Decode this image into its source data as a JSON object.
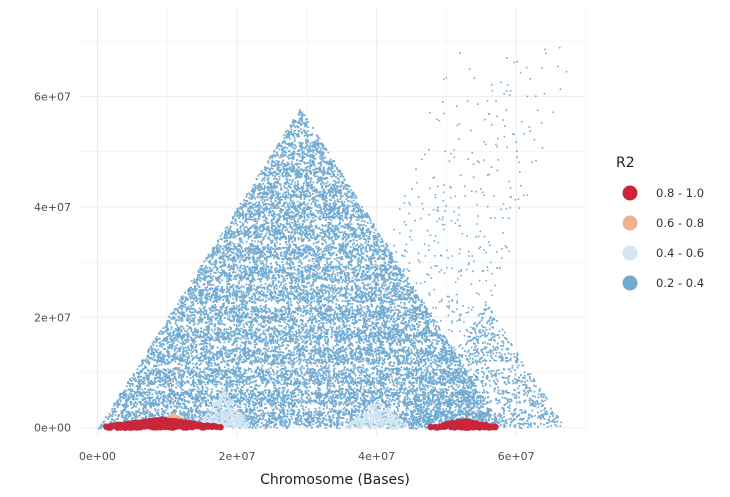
{
  "chart_data": {
    "type": "scatter",
    "title": "",
    "xlabel": "Chromosome (Bases)",
    "ylabel": "",
    "xlim": [
      -2500000,
      70000000
    ],
    "ylim": [
      -1500000,
      76000000
    ],
    "x_ticks": [
      0,
      20000000,
      40000000,
      60000000
    ],
    "x_tick_labels": [
      "0e+00",
      "2e+07",
      "4e+07",
      "6e+07"
    ],
    "y_ticks": [
      0,
      20000000,
      40000000,
      60000000
    ],
    "y_tick_labels": [
      "0e+00",
      "2e+07",
      "4e+07",
      "6e+07"
    ],
    "grid": true,
    "legend": {
      "title": "R2",
      "position": "right",
      "items": [
        {
          "label": "0.8 - 1.0",
          "color": "#c9263b"
        },
        {
          "label": "0.6 - 0.8",
          "color": "#f0b190"
        },
        {
          "label": "0.4 - 0.6",
          "color": "#d3e6f2"
        },
        {
          "label": "0.2 - 0.4",
          "color": "#72abd1"
        }
      ]
    },
    "series": [
      {
        "name": "0.2 - 0.4",
        "color": "#72abd1",
        "regions": [
          {
            "shape": "triangle",
            "x_range": [
              0,
              58000000
            ],
            "height": 58000000
          },
          {
            "shape": "triangle",
            "x_range": [
              44000000,
              67000000
            ],
            "height": 23000000
          },
          {
            "shape": "scatter-band",
            "x_from": [
              32000000,
              70000000
            ],
            "x_to": [
              37000000,
              49000000
            ]
          }
        ]
      },
      {
        "name": "0.4 - 0.6",
        "color": "#d3e6f2",
        "regions": [
          {
            "shape": "triangle",
            "x_range": [
              14000000,
              22000000
            ],
            "height": 7000000
          },
          {
            "shape": "triangle",
            "x_range": [
              35000000,
              45000000
            ],
            "height": 5000000
          }
        ]
      },
      {
        "name": "0.6 - 0.8",
        "color": "#f0b190",
        "regions": [
          {
            "shape": "triangle",
            "x_range": [
              8000000,
              14000000
            ],
            "height": 2500000
          }
        ]
      },
      {
        "name": "0.8 - 1.0",
        "color": "#c9263b",
        "regions": [
          {
            "shape": "triangle",
            "x_range": [
              0,
              18500000
            ],
            "height": 1500000
          },
          {
            "shape": "triangle",
            "x_range": [
              47000000,
              58000000
            ],
            "height": 1200000
          }
        ]
      }
    ]
  }
}
